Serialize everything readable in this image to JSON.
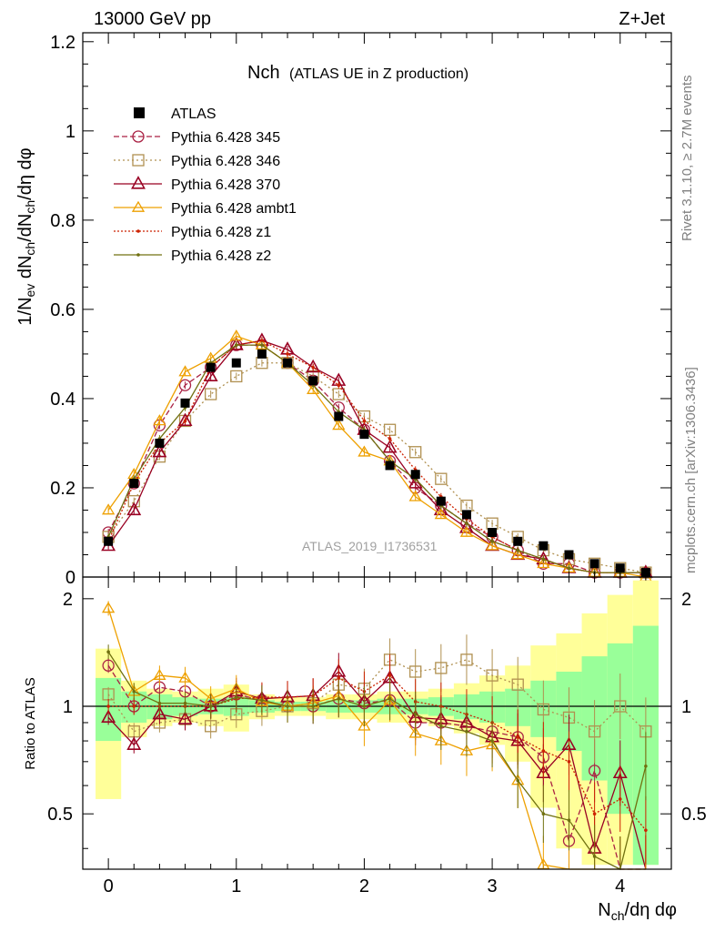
{
  "header": {
    "left": "13000 GeV pp",
    "right": "Z+Jet"
  },
  "side_labels": {
    "rivet": "Rivet 3.1.10, ≥ 2.7M events",
    "mcplots": "mcplots.cern.ch [arXiv:1306.3436]"
  },
  "chart_data": {
    "type": "line",
    "title_main": "Nch",
    "title_sub": "(ATLAS UE in Z production)",
    "analysis_label": "ATLAS_2019_I1736531",
    "xlabel": "N_ch/dη dφ",
    "ylabel": "1/N_ev dN_ch/dN_ch/dη dφ",
    "ratio_ylabel": "Ratio to ATLAS",
    "xlim": [
      -0.2,
      4.4
    ],
    "ylim": [
      0,
      1.22
    ],
    "ratio_ylim": [
      0.35,
      2.3
    ],
    "x_ticks": [
      "0",
      "1",
      "2",
      "3",
      "4"
    ],
    "y_ticks": [
      "0",
      "0.2",
      "0.4",
      "0.6",
      "0.8",
      "1",
      "1.2"
    ],
    "ratio_ticks": [
      "0.5",
      "1",
      "2"
    ],
    "x": [
      0,
      0.2,
      0.4,
      0.6,
      0.8,
      1.0,
      1.2,
      1.4,
      1.6,
      1.8,
      2.0,
      2.2,
      2.4,
      2.6,
      2.8,
      3.0,
      3.2,
      3.4,
      3.6,
      3.8,
      4.0,
      4.2
    ],
    "data": {
      "name": "ATLAS",
      "values": [
        0.08,
        0.21,
        0.3,
        0.39,
        0.47,
        0.48,
        0.5,
        0.48,
        0.44,
        0.36,
        0.32,
        0.25,
        0.23,
        0.17,
        0.14,
        0.1,
        0.08,
        0.07,
        0.05,
        0.03,
        0.02,
        0.01
      ]
    },
    "band_inner": [
      0.2,
      0.1,
      0.08,
      0.06,
      0.05,
      0.06,
      0.04,
      0.03,
      0.03,
      0.04,
      0.04,
      0.05,
      0.05,
      0.06,
      0.08,
      0.1,
      0.12,
      0.18,
      0.25,
      0.38,
      0.5,
      0.68
    ],
    "band_outer": [
      0.45,
      0.18,
      0.12,
      0.1,
      0.12,
      0.15,
      0.08,
      0.06,
      0.06,
      0.08,
      0.08,
      0.1,
      0.1,
      0.12,
      0.16,
      0.22,
      0.3,
      0.48,
      0.6,
      0.82,
      1.05,
      1.25
    ],
    "series": [
      {
        "name": "Pythia 6.428 345",
        "color": "#aa2244",
        "dash": "6,3",
        "marker": "circle",
        "values": [
          0.1,
          0.21,
          0.34,
          0.43,
          0.47,
          0.52,
          0.52,
          0.48,
          0.44,
          0.38,
          0.33,
          0.26,
          0.2,
          0.16,
          0.12,
          0.09,
          0.06,
          0.03,
          0.03,
          0.01,
          0.01,
          0.01
        ],
        "ratio": [
          1.3,
          1.0,
          1.13,
          1.1,
          1.0,
          1.08,
          1.04,
          1.0,
          1.0,
          1.05,
          1.02,
          1.04,
          0.9,
          0.9,
          0.88,
          0.85,
          0.82,
          0.72,
          0.42,
          0.66,
          0.3,
          0.2
        ]
      },
      {
        "name": "Pythia 6.428 346",
        "color": "#b09050",
        "dash": "2,3",
        "marker": "square",
        "values": [
          0.09,
          0.17,
          0.27,
          0.35,
          0.41,
          0.45,
          0.48,
          0.48,
          0.45,
          0.41,
          0.36,
          0.33,
          0.28,
          0.22,
          0.16,
          0.12,
          0.09,
          0.06,
          0.04,
          0.03,
          0.02,
          0.01
        ],
        "ratio": [
          1.08,
          0.85,
          0.9,
          0.92,
          0.88,
          0.95,
          0.97,
          1.0,
          1.02,
          1.15,
          1.12,
          1.35,
          1.25,
          1.28,
          1.35,
          1.22,
          1.15,
          0.98,
          0.93,
          0.85,
          1.0,
          0.85
        ]
      },
      {
        "name": "Pythia 6.428 370",
        "color": "#990022",
        "dash": "",
        "marker": "triangle",
        "values": [
          0.07,
          0.15,
          0.28,
          0.35,
          0.45,
          0.52,
          0.53,
          0.51,
          0.47,
          0.44,
          0.33,
          0.29,
          0.21,
          0.15,
          0.11,
          0.07,
          0.05,
          0.04,
          0.02,
          0.01,
          0.01,
          0.01
        ],
        "ratio": [
          0.93,
          0.78,
          0.95,
          0.92,
          1.0,
          1.1,
          1.05,
          1.06,
          1.07,
          1.25,
          1.03,
          1.2,
          0.93,
          0.92,
          0.9,
          0.82,
          0.8,
          0.65,
          0.78,
          0.4,
          0.65,
          0.3
        ]
      },
      {
        "name": "Pythia 6.428 ambt1",
        "color": "#eea000",
        "dash": "",
        "marker": "open-triangle-small",
        "values": [
          0.15,
          0.23,
          0.35,
          0.46,
          0.49,
          0.54,
          0.52,
          0.48,
          0.42,
          0.34,
          0.28,
          0.26,
          0.18,
          0.14,
          0.1,
          0.07,
          0.05,
          0.03,
          0.02,
          0.01,
          0.01,
          0.0
        ],
        "ratio": [
          1.88,
          1.1,
          1.22,
          1.2,
          1.05,
          1.12,
          1.03,
          1.0,
          1.02,
          1.07,
          0.88,
          1.04,
          0.84,
          0.8,
          0.75,
          0.78,
          0.62,
          0.36,
          0.31,
          0.29,
          0.28,
          0.2
        ]
      },
      {
        "name": "Pythia 6.428 z1",
        "color": "#cc2200",
        "dash": "2,2",
        "marker": "dot",
        "values": [
          0.08,
          0.21,
          0.3,
          0.35,
          0.47,
          0.52,
          0.53,
          0.5,
          0.47,
          0.43,
          0.35,
          0.31,
          0.24,
          0.18,
          0.13,
          0.09,
          0.06,
          0.04,
          0.02,
          0.01,
          0.01,
          0.01
        ],
        "ratio": [
          1.0,
          1.0,
          1.0,
          1.0,
          1.0,
          1.05,
          1.06,
          1.06,
          1.07,
          1.2,
          1.1,
          1.22,
          1.03,
          1.0,
          0.95,
          0.9,
          0.82,
          0.75,
          0.7,
          0.5,
          0.55,
          0.45
        ]
      },
      {
        "name": "Pythia 6.428 z2",
        "color": "#707010",
        "dash": "",
        "marker": "dot",
        "values": [
          0.09,
          0.22,
          0.31,
          0.38,
          0.48,
          0.52,
          0.52,
          0.48,
          0.43,
          0.37,
          0.33,
          0.26,
          0.22,
          0.16,
          0.12,
          0.08,
          0.06,
          0.04,
          0.02,
          0.01,
          0.01,
          0.01
        ],
        "ratio": [
          1.42,
          1.1,
          1.02,
          1.02,
          1.0,
          1.06,
          1.04,
          1.0,
          1.0,
          1.05,
          1.0,
          1.05,
          0.95,
          0.88,
          0.85,
          0.8,
          0.62,
          0.5,
          0.48,
          0.38,
          0.35,
          0.68
        ]
      }
    ]
  }
}
